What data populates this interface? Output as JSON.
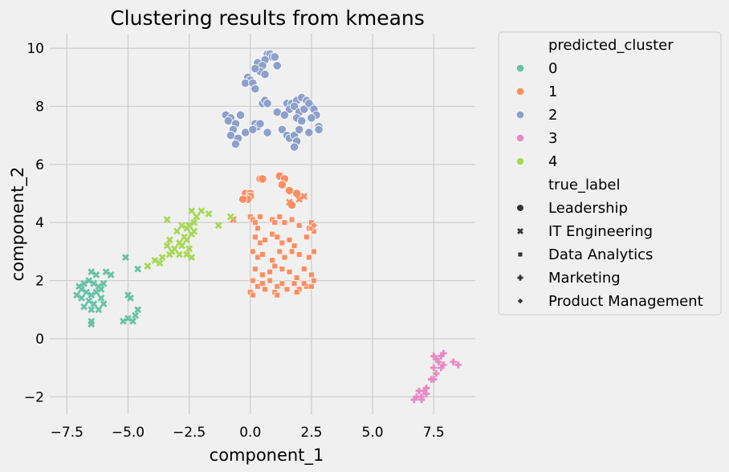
{
  "chart_data": {
    "type": "scatter",
    "title": "Clustering results from kmeans",
    "xlabel": "component_1",
    "ylabel": "component_2",
    "xlim": [
      -8.2,
      9.2
    ],
    "ylim": [
      -2.6,
      10.5
    ],
    "x_ticks": [
      -7.5,
      -5.0,
      -2.5,
      0.0,
      2.5,
      5.0,
      7.5
    ],
    "x_tick_labels": [
      "−7.5",
      "−5.0",
      "−2.5",
      "0.0",
      "2.5",
      "5.0",
      "7.5"
    ],
    "y_ticks": [
      -2,
      0,
      2,
      4,
      6,
      8,
      10
    ],
    "y_tick_labels": [
      "−2",
      "0",
      "2",
      "4",
      "6",
      "8",
      "10"
    ],
    "grid": true,
    "legend_position": "outside-right",
    "legend": {
      "hue_title": "predicted_cluster",
      "hue_items": [
        {
          "label": "0",
          "color": "#66c2a5"
        },
        {
          "label": "1",
          "color": "#fc8d62"
        },
        {
          "label": "2",
          "color": "#8da0cb"
        },
        {
          "label": "3",
          "color": "#e78ac3"
        },
        {
          "label": "4",
          "color": "#a6d854"
        }
      ],
      "style_title": "true_label",
      "style_items": [
        {
          "label": "Leadership",
          "marker": "circle"
        },
        {
          "label": "IT Engineering",
          "marker": "x"
        },
        {
          "label": "Data Analytics",
          "marker": "square"
        },
        {
          "label": "Marketing",
          "marker": "plus"
        },
        {
          "label": "Product Management",
          "marker": "diamond"
        }
      ]
    },
    "series": [
      {
        "cluster": "2",
        "marker": "circle",
        "color": "#8da0cb",
        "points": [
          [
            0.7,
            9.8
          ],
          [
            0.8,
            9.8
          ],
          [
            0.9,
            9.7
          ],
          [
            1.0,
            9.7
          ],
          [
            0.6,
            9.6
          ],
          [
            1.1,
            9.4
          ],
          [
            0.3,
            9.5
          ],
          [
            0.5,
            9.4
          ],
          [
            0.4,
            9.2
          ],
          [
            0.2,
            9.3
          ],
          [
            0.6,
            9.1
          ],
          [
            -0.1,
            9.0
          ],
          [
            0.0,
            8.9
          ],
          [
            -0.2,
            8.8
          ],
          [
            0.1,
            8.8
          ],
          [
            0.2,
            8.6
          ],
          [
            0.5,
            8.1
          ],
          [
            0.6,
            8.2
          ],
          [
            0.7,
            8.1
          ],
          [
            1.5,
            8.1
          ],
          [
            1.7,
            8.1
          ],
          [
            1.9,
            8.2
          ],
          [
            2.1,
            8.3
          ],
          [
            2.3,
            8.2
          ],
          [
            2.5,
            8.0
          ],
          [
            1.6,
            7.9
          ],
          [
            1.8,
            8.0
          ],
          [
            2.0,
            7.8
          ],
          [
            2.2,
            7.9
          ],
          [
            2.4,
            8.1
          ],
          [
            2.6,
            7.9
          ],
          [
            2.7,
            7.7
          ],
          [
            1.1,
            7.8
          ],
          [
            1.4,
            7.7
          ],
          [
            1.9,
            7.6
          ],
          [
            2.1,
            7.5
          ],
          [
            2.5,
            7.6
          ],
          [
            -1.0,
            7.7
          ],
          [
            -0.8,
            7.6
          ],
          [
            -0.9,
            7.5
          ],
          [
            -0.6,
            7.4
          ],
          [
            -0.4,
            7.7
          ],
          [
            -0.7,
            7.2
          ],
          [
            -0.8,
            7.0
          ],
          [
            -0.5,
            6.9
          ],
          [
            -0.6,
            6.7
          ],
          [
            -0.2,
            7.1
          ],
          [
            0.2,
            7.4
          ],
          [
            0.3,
            7.3
          ],
          [
            0.4,
            7.4
          ],
          [
            0.1,
            7.2
          ],
          [
            0.7,
            7.1
          ],
          [
            1.3,
            7.2
          ],
          [
            1.5,
            7.0
          ],
          [
            1.6,
            6.9
          ],
          [
            1.8,
            7.0
          ],
          [
            1.9,
            6.8
          ],
          [
            1.8,
            6.6
          ],
          [
            2.0,
            7.2
          ],
          [
            2.4,
            7.1
          ],
          [
            2.8,
            7.3
          ],
          [
            2.8,
            7.2
          ]
        ]
      },
      {
        "cluster": "1",
        "marker": "circle",
        "color": "#fc8d62",
        "points": [
          [
            -0.2,
            5.0
          ],
          [
            0.0,
            5.0
          ],
          [
            0.0,
            4.9
          ],
          [
            -0.1,
            4.8
          ],
          [
            -0.3,
            4.8
          ],
          [
            0.4,
            5.5
          ],
          [
            0.5,
            5.5
          ],
          [
            1.2,
            5.6
          ],
          [
            1.4,
            5.5
          ],
          [
            1.3,
            5.3
          ],
          [
            1.6,
            5.1
          ],
          [
            1.7,
            4.6
          ],
          [
            1.9,
            5.0
          ]
        ]
      },
      {
        "cluster": "1",
        "marker": "x",
        "color": "#fc8d62",
        "points": [
          [
            -0.7,
            4.1
          ],
          [
            2.0,
            4.8
          ],
          [
            2.2,
            4.9
          ],
          [
            1.6,
            4.7
          ]
        ]
      },
      {
        "cluster": "1",
        "marker": "square",
        "color": "#fc8d62",
        "points": [
          [
            0.0,
            4.2
          ],
          [
            0.1,
            4.1
          ],
          [
            0.2,
            4.0
          ],
          [
            0.3,
            3.8
          ],
          [
            0.4,
            4.2
          ],
          [
            0.9,
            4.1
          ],
          [
            1.0,
            4.0
          ],
          [
            1.2,
            4.2
          ],
          [
            1.4,
            4.0
          ],
          [
            1.7,
            4.1
          ],
          [
            2.0,
            3.9
          ],
          [
            2.4,
            3.8
          ],
          [
            2.5,
            4.0
          ],
          [
            0.2,
            3.5
          ],
          [
            0.4,
            3.3
          ],
          [
            0.6,
            3.4
          ],
          [
            0.9,
            3.6
          ],
          [
            1.1,
            3.5
          ],
          [
            1.3,
            3.3
          ],
          [
            1.6,
            3.4
          ],
          [
            1.8,
            3.2
          ],
          [
            2.3,
            3.5
          ],
          [
            2.6,
            3.7
          ],
          [
            0.1,
            3.0
          ],
          [
            0.3,
            2.8
          ],
          [
            0.5,
            2.9
          ],
          [
            0.9,
            2.7
          ],
          [
            1.2,
            3.0
          ],
          [
            1.4,
            2.8
          ],
          [
            1.7,
            3.0
          ],
          [
            2.0,
            2.9
          ],
          [
            2.4,
            2.8
          ],
          [
            2.6,
            3.0
          ],
          [
            0.2,
            2.4
          ],
          [
            0.5,
            2.2
          ],
          [
            0.8,
            2.3
          ],
          [
            1.0,
            2.5
          ],
          [
            1.3,
            2.4
          ],
          [
            1.6,
            2.3
          ],
          [
            1.9,
            2.1
          ],
          [
            2.2,
            2.4
          ],
          [
            2.5,
            2.2
          ],
          [
            0.1,
            2.0
          ],
          [
            0.3,
            1.8
          ],
          [
            0.5,
            1.9
          ],
          [
            0.8,
            2.0
          ],
          [
            1.1,
            1.8
          ],
          [
            1.3,
            1.9
          ],
          [
            1.5,
            1.7
          ],
          [
            1.8,
            1.9
          ],
          [
            2.0,
            1.7
          ],
          [
            2.3,
            1.8
          ],
          [
            2.6,
            2.0
          ],
          [
            2.5,
            1.8
          ],
          [
            0.0,
            1.6
          ],
          [
            0.1,
            1.5
          ],
          [
            0.6,
            1.7
          ],
          [
            1.0,
            1.6
          ],
          [
            1.1,
            1.5
          ],
          [
            1.9,
            1.6
          ],
          [
            2.2,
            1.9
          ]
        ]
      },
      {
        "cluster": "1",
        "marker": "diamond",
        "color": "#fc8d62",
        "points": [
          [
            2.5,
            3.8
          ],
          [
            2.6,
            3.9
          ]
        ]
      },
      {
        "cluster": "4",
        "marker": "x",
        "color": "#a6d854",
        "points": [
          [
            -2.4,
            4.4
          ],
          [
            -2.0,
            4.4
          ],
          [
            -1.7,
            4.3
          ],
          [
            -2.2,
            4.2
          ],
          [
            -2.3,
            4.0
          ],
          [
            -2.5,
            3.9
          ],
          [
            -3.4,
            4.1
          ],
          [
            -2.8,
            3.9
          ],
          [
            -2.6,
            3.8
          ],
          [
            -3.0,
            3.7
          ],
          [
            -2.4,
            3.6
          ],
          [
            -2.7,
            3.5
          ],
          [
            -3.3,
            3.4
          ],
          [
            -2.9,
            3.3
          ],
          [
            -2.6,
            3.4
          ],
          [
            -3.4,
            3.2
          ],
          [
            -3.1,
            3.1
          ],
          [
            -2.8,
            3.2
          ],
          [
            -3.2,
            3.0
          ],
          [
            -2.9,
            2.9
          ],
          [
            -2.6,
            2.9
          ],
          [
            -2.5,
            3.1
          ],
          [
            -2.4,
            2.8
          ],
          [
            -3.6,
            2.8
          ],
          [
            -3.3,
            2.9
          ],
          [
            -3.9,
            2.7
          ],
          [
            -3.7,
            2.6
          ],
          [
            -4.2,
            2.5
          ],
          [
            -1.3,
            3.9
          ],
          [
            -0.8,
            4.2
          ],
          [
            -2.3,
            3.7
          ]
        ]
      },
      {
        "cluster": "0",
        "marker": "x",
        "color": "#66c2a5",
        "points": [
          [
            -6.5,
            2.3
          ],
          [
            -6.3,
            2.2
          ],
          [
            -5.9,
            2.3
          ],
          [
            -5.7,
            2.2
          ],
          [
            -6.6,
            2.0
          ],
          [
            -6.4,
            1.9
          ],
          [
            -6.8,
            1.9
          ],
          [
            -7.0,
            1.8
          ],
          [
            -6.9,
            1.7
          ],
          [
            -6.2,
            1.8
          ],
          [
            -6.0,
            1.9
          ],
          [
            -6.1,
            1.7
          ],
          [
            -6.7,
            1.6
          ],
          [
            -6.5,
            1.5
          ],
          [
            -6.3,
            1.6
          ],
          [
            -7.1,
            1.5
          ],
          [
            -6.9,
            1.4
          ],
          [
            -6.6,
            1.3
          ],
          [
            -6.4,
            1.2
          ],
          [
            -6.1,
            1.4
          ],
          [
            -6.0,
            1.2
          ],
          [
            -6.8,
            1.1
          ],
          [
            -6.5,
            1.0
          ],
          [
            -6.2,
            1.0
          ],
          [
            -6.5,
            0.6
          ],
          [
            -6.5,
            0.5
          ],
          [
            -5.1,
            2.8
          ],
          [
            -4.6,
            2.4
          ],
          [
            -5.0,
            1.5
          ],
          [
            -4.9,
            1.4
          ],
          [
            -5.0,
            0.7
          ],
          [
            -4.7,
            0.8
          ],
          [
            -4.6,
            1.0
          ],
          [
            -4.8,
            0.6
          ],
          [
            -5.2,
            0.6
          ]
        ]
      },
      {
        "cluster": "3",
        "marker": "plus",
        "color": "#e78ac3",
        "points": [
          [
            7.9,
            -0.5
          ],
          [
            7.8,
            -0.6
          ],
          [
            7.5,
            -0.6
          ],
          [
            7.6,
            -0.7
          ],
          [
            7.7,
            -0.8
          ],
          [
            7.9,
            -0.9
          ],
          [
            8.3,
            -0.8
          ],
          [
            8.5,
            -0.9
          ],
          [
            7.5,
            -1.0
          ],
          [
            7.8,
            -1.0
          ],
          [
            7.6,
            -1.2
          ],
          [
            7.5,
            -1.4
          ],
          [
            7.4,
            -1.4
          ],
          [
            7.2,
            -1.7
          ],
          [
            7.1,
            -1.8
          ],
          [
            7.2,
            -1.9
          ],
          [
            6.9,
            -1.8
          ],
          [
            7.0,
            -2.0
          ],
          [
            6.8,
            -2.0
          ],
          [
            6.7,
            -2.1
          ],
          [
            7.0,
            -2.1
          ]
        ]
      }
    ]
  }
}
